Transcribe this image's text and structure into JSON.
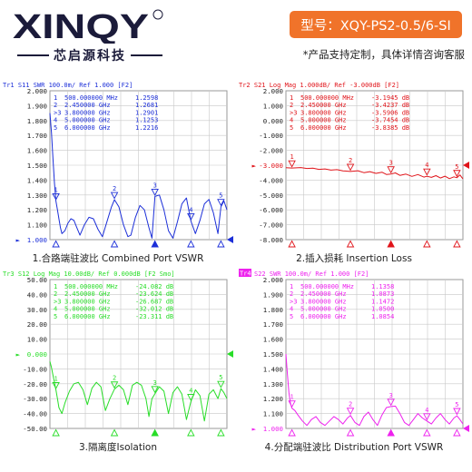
{
  "header": {
    "brand_name": "XINQY",
    "brand_subtitle": "芯启源科技",
    "model_label": "型号：XQY-PS2-0.5/6-SI",
    "custom_note": "*产品支持定制，具体详情咨询客服"
  },
  "chart_data": [
    {
      "type": "line",
      "color": "#1c2fd8",
      "title": "Tr1 S11 SWR 100.0m/ Ref 1.000 [F2]",
      "caption": "1.合路端驻波比 Combined Port VSWR",
      "ylim": [
        1.0,
        2.0
      ],
      "y_ticks": [
        "2.000",
        "1.900",
        "1.800",
        "1.700",
        "1.600",
        "1.500",
        "1.400",
        "1.300",
        "1.200",
        "1.100",
        "1.000"
      ],
      "ref_value": 1.0,
      "ref_tick_label": "1.000",
      "xlim": [
        0.3,
        6.2
      ],
      "markers": [
        {
          "id": "1",
          "label": "1",
          "freq": "500.000000 MHz",
          "value": "1.2598",
          "x": 0.5,
          "y": 1.2598
        },
        {
          "id": "2",
          "label": "2",
          "freq": "2.450000 GHz",
          "value": "1.2681",
          "x": 2.45,
          "y": 1.2681
        },
        {
          "id": "3",
          "label": ">3",
          "freq": "3.800000 GHz",
          "value": "1.2901",
          "x": 3.8,
          "y": 1.2901
        },
        {
          "id": "4",
          "label": "4",
          "freq": "5.000000 GHz",
          "value": "1.1253",
          "x": 5.0,
          "y": 1.1253
        },
        {
          "id": "5",
          "label": "5",
          "freq": "6.000000 GHz",
          "value": "1.2216",
          "x": 6.0,
          "y": 1.2216
        }
      ],
      "series": [
        {
          "x": [
            0.3,
            0.35,
            0.4,
            0.45,
            0.5,
            0.55,
            0.6,
            0.65,
            0.7,
            0.8,
            0.9,
            1.0,
            1.1,
            1.2,
            1.3,
            1.45,
            1.6,
            1.75,
            1.9,
            2.05,
            2.2,
            2.35,
            2.45,
            2.6,
            2.75,
            2.9,
            3.0,
            3.15,
            3.3,
            3.45,
            3.6,
            3.7,
            3.8,
            3.95,
            4.1,
            4.25,
            4.4,
            4.55,
            4.7,
            4.85,
            5.0,
            5.15,
            5.3,
            5.45,
            5.6,
            5.75,
            5.9,
            6.0,
            6.1,
            6.2
          ],
          "y": [
            1.85,
            1.72,
            1.55,
            1.38,
            1.26,
            1.2,
            1.14,
            1.08,
            1.04,
            1.06,
            1.11,
            1.14,
            1.13,
            1.08,
            1.03,
            1.1,
            1.15,
            1.14,
            1.07,
            1.02,
            1.12,
            1.22,
            1.268,
            1.22,
            1.1,
            1.02,
            1.03,
            1.15,
            1.23,
            1.2,
            1.08,
            1.01,
            1.29,
            1.3,
            1.2,
            1.06,
            1.01,
            1.12,
            1.24,
            1.28,
            1.125,
            1.04,
            1.13,
            1.24,
            1.27,
            1.18,
            1.04,
            1.22,
            1.26,
            1.2
          ]
        }
      ]
    },
    {
      "type": "line",
      "color": "#e0141a",
      "title": "Tr2 S21 Log Mag 1.000dB/ Ref -3.000dB [F2]",
      "caption": "2.插入损耗 Insertion Loss",
      "ylim": [
        -8.0,
        2.0
      ],
      "y_ticks": [
        "2.000",
        "1.000",
        "0.000",
        "-1.000",
        "-2.000",
        "-3.000",
        "-4.000",
        "-5.000",
        "-6.000",
        "-7.000",
        "-8.000"
      ],
      "ref_value": -3.0,
      "ref_tick_label": "-3.000",
      "xlim": [
        0.3,
        6.2
      ],
      "markers": [
        {
          "id": "1",
          "label": "1",
          "freq": "500.000000 MHz",
          "value": "-3.1945 dB",
          "x": 0.5,
          "y": -3.1945
        },
        {
          "id": "2",
          "label": "2",
          "freq": "2.450000 GHz",
          "value": "-3.4237 dB",
          "x": 2.45,
          "y": -3.4237
        },
        {
          "id": "3",
          "label": ">3",
          "freq": "3.800000 GHz",
          "value": "-3.5906 dB",
          "x": 3.8,
          "y": -3.5906
        },
        {
          "id": "4",
          "label": "4",
          "freq": "5.000000 GHz",
          "value": "-3.7454 dB",
          "x": 5.0,
          "y": -3.7454
        },
        {
          "id": "5",
          "label": "5",
          "freq": "6.000000 GHz",
          "value": "-3.8385 dB",
          "x": 6.0,
          "y": -3.8385
        }
      ],
      "series": [
        {
          "x": [
            0.3,
            0.5,
            0.8,
            1.0,
            1.2,
            1.4,
            1.6,
            1.8,
            2.0,
            2.2,
            2.45,
            2.7,
            2.9,
            3.1,
            3.3,
            3.5,
            3.65,
            3.8,
            3.95,
            4.1,
            4.3,
            4.5,
            4.7,
            4.9,
            5.0,
            5.15,
            5.3,
            5.45,
            5.6,
            5.75,
            5.9,
            6.0,
            6.1,
            6.2
          ],
          "y": [
            -3.17,
            -3.19,
            -3.16,
            -3.22,
            -3.2,
            -3.28,
            -3.25,
            -3.33,
            -3.3,
            -3.38,
            -3.42,
            -3.37,
            -3.5,
            -3.43,
            -3.55,
            -3.47,
            -3.62,
            -3.59,
            -3.52,
            -3.68,
            -3.6,
            -3.75,
            -3.63,
            -3.8,
            -3.745,
            -3.82,
            -3.7,
            -3.86,
            -3.74,
            -3.9,
            -3.78,
            -3.84,
            -3.65,
            -3.92
          ]
        }
      ]
    },
    {
      "type": "line",
      "color": "#28dd28",
      "title": "Tr3 S12 Log Mag 10.00dB/ Ref 0.000dB [F2 Smo]",
      "caption": "3.隔离度Isolation",
      "ylim": [
        -50.0,
        50.0
      ],
      "y_ticks": [
        "50.00",
        "40.00",
        "30.00",
        "20.00",
        "10.00",
        "0.000",
        "-10.00",
        "-20.00",
        "-30.00",
        "-40.00",
        "-50.00"
      ],
      "ref_value": 0.0,
      "ref_tick_label": "0.000",
      "xlim": [
        0.3,
        6.2
      ],
      "markers": [
        {
          "id": "1",
          "label": "1",
          "freq": "500.000000 MHz",
          "value": "-24.082 dB",
          "x": 0.5,
          "y": -24.082
        },
        {
          "id": "2",
          "label": "2",
          "freq": "2.450000 GHz",
          "value": "-23.624 dB",
          "x": 2.45,
          "y": -23.624
        },
        {
          "id": "3",
          "label": ">3",
          "freq": "3.800000 GHz",
          "value": "-26.687 dB",
          "x": 3.8,
          "y": -26.687
        },
        {
          "id": "4",
          "label": "4",
          "freq": "5.000000 GHz",
          "value": "-32.012 dB",
          "x": 5.0,
          "y": -32.012
        },
        {
          "id": "5",
          "label": "5",
          "freq": "6.000000 GHz",
          "value": "-23.311 dB",
          "x": 6.0,
          "y": -23.311
        }
      ],
      "series": [
        {
          "x": [
            0.3,
            0.35,
            0.4,
            0.45,
            0.5,
            0.55,
            0.6,
            0.7,
            0.8,
            0.95,
            1.1,
            1.25,
            1.4,
            1.55,
            1.7,
            1.85,
            2.0,
            2.15,
            2.3,
            2.45,
            2.6,
            2.75,
            2.9,
            3.05,
            3.2,
            3.35,
            3.5,
            3.6,
            3.7,
            3.8,
            3.95,
            4.1,
            4.25,
            4.4,
            4.55,
            4.7,
            4.85,
            5.0,
            5.15,
            5.3,
            5.45,
            5.6,
            5.75,
            5.9,
            6.0,
            6.1,
            6.2
          ],
          "y": [
            -5.0,
            -9.0,
            -14.0,
            -19.0,
            -24.0,
            -30.0,
            -36.0,
            -40.0,
            -33.0,
            -25.0,
            -20.0,
            -19.0,
            -24.0,
            -34.0,
            -23.0,
            -19.0,
            -22.0,
            -38.0,
            -30.0,
            -23.6,
            -21.0,
            -24.0,
            -34.0,
            -21.0,
            -19.0,
            -21.0,
            -30.0,
            -42.0,
            -30.0,
            -26.7,
            -22.0,
            -25.0,
            -40.0,
            -26.0,
            -22.0,
            -27.0,
            -44.0,
            -32.0,
            -24.0,
            -28.0,
            -45.0,
            -27.0,
            -24.0,
            -30.0,
            -23.3,
            -26.0,
            -30.0
          ]
        }
      ]
    },
    {
      "type": "line",
      "color": "#ee22ee",
      "title": "S22 SWR 100.0m/ Ref 1.000 [F2]",
      "trace_badge": "Tr4",
      "caption": "4.分配端驻波比 Distribution  Port VSWR",
      "ylim": [
        1.0,
        2.0
      ],
      "y_ticks": [
        "2.000",
        "1.900",
        "1.800",
        "1.700",
        "1.600",
        "1.500",
        "1.400",
        "1.300",
        "1.200",
        "1.100",
        "1.000"
      ],
      "ref_value": 1.0,
      "ref_tick_label": "1.000",
      "xlim": [
        0.3,
        6.2
      ],
      "markers": [
        {
          "id": "1",
          "label": "1",
          "freq": "500.000000 MHz",
          "value": "1.1358",
          "x": 0.5,
          "y": 1.1358
        },
        {
          "id": "2",
          "label": "2",
          "freq": "2.450000 GHz",
          "value": "1.0873",
          "x": 2.45,
          "y": 1.0873
        },
        {
          "id": "3",
          "label": ">3",
          "freq": "3.800000 GHz",
          "value": "1.1472",
          "x": 3.8,
          "y": 1.1472
        },
        {
          "id": "4",
          "label": "4",
          "freq": "5.000000 GHz",
          "value": "1.0500",
          "x": 5.0,
          "y": 1.05
        },
        {
          "id": "5",
          "label": "5",
          "freq": "6.000000 GHz",
          "value": "1.0854",
          "x": 6.0,
          "y": 1.0854
        }
      ],
      "series": [
        {
          "x": [
            0.3,
            0.35,
            0.4,
            0.45,
            0.5,
            0.6,
            0.7,
            0.85,
            1.0,
            1.15,
            1.3,
            1.45,
            1.6,
            1.75,
            1.9,
            2.05,
            2.2,
            2.35,
            2.45,
            2.6,
            2.75,
            2.9,
            3.05,
            3.2,
            3.35,
            3.5,
            3.65,
            3.8,
            3.95,
            4.1,
            4.25,
            4.4,
            4.55,
            4.7,
            4.85,
            5.0,
            5.15,
            5.3,
            5.45,
            5.6,
            5.75,
            5.9,
            6.0,
            6.1,
            6.2
          ],
          "y": [
            1.5,
            1.36,
            1.24,
            1.17,
            1.136,
            1.12,
            1.09,
            1.05,
            1.02,
            1.06,
            1.08,
            1.04,
            1.02,
            1.05,
            1.08,
            1.06,
            1.03,
            1.07,
            1.087,
            1.04,
            1.02,
            1.08,
            1.11,
            1.06,
            1.02,
            1.09,
            1.14,
            1.147,
            1.15,
            1.1,
            1.04,
            1.02,
            1.06,
            1.1,
            1.07,
            1.05,
            1.03,
            1.07,
            1.1,
            1.06,
            1.03,
            1.07,
            1.085,
            1.06,
            1.03
          ]
        }
      ]
    }
  ]
}
